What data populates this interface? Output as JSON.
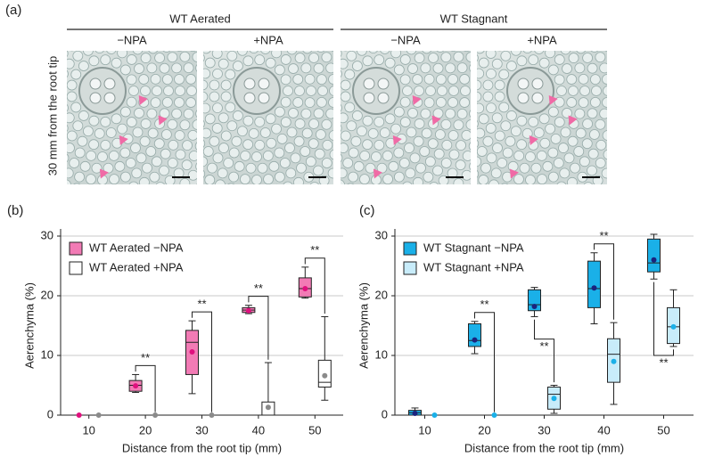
{
  "panel_a": {
    "label": "(a)",
    "side_label": "30 mm from the root tip",
    "groups": [
      {
        "title": "WT Aerated",
        "treatments": [
          "−NPA",
          "+NPA"
        ]
      },
      {
        "title": "WT Stagnant",
        "treatments": [
          "−NPA",
          "+NPA"
        ]
      }
    ]
  },
  "chart_data": [
    {
      "type": "box",
      "panel_label": "(b)",
      "x_label": "Distance from the root tip (mm)",
      "y_label": "Aerenchyma (%)",
      "categories": [
        "10",
        "20",
        "30",
        "40",
        "50"
      ],
      "ylim": [
        0,
        30
      ],
      "yticks": [
        0,
        10,
        20,
        30
      ],
      "grid": true,
      "legend": "upper left",
      "series": [
        {
          "name": "WT Aerated −NPA",
          "color": "#f27bb5",
          "mean_color": "#e0107e",
          "min": [
            0,
            3.8,
            3.6,
            17,
            19.6
          ],
          "q1": [
            0,
            4,
            6.8,
            17.2,
            19.8
          ],
          "median": [
            0,
            5,
            12.2,
            17.6,
            21.2
          ],
          "q3": [
            0,
            5.8,
            14.2,
            18,
            23
          ],
          "max": [
            0,
            6.8,
            15.8,
            18.4,
            24.8
          ],
          "mean": [
            0,
            4.9,
            10.6,
            17.5,
            21.2
          ]
        },
        {
          "name": "WT Aerated +NPA",
          "color": "#ffffff",
          "mean_color": "#8a8a8a",
          "min": [
            0,
            0,
            0,
            0,
            2.5
          ],
          "q1": [
            0,
            0,
            0,
            0,
            4.7
          ],
          "median": [
            0,
            0,
            0,
            0,
            5.5
          ],
          "q3": [
            0,
            0,
            0,
            2.2,
            9.2
          ],
          "max": [
            0,
            0,
            0,
            8.8,
            16.5
          ],
          "mean": [
            0,
            0,
            0,
            1.3,
            6.6
          ]
        }
      ],
      "annotations": [
        {
          "category": "20",
          "text": "**",
          "placement": "above"
        },
        {
          "category": "30",
          "text": "**",
          "placement": "above"
        },
        {
          "category": "40",
          "text": "**",
          "placement": "above"
        },
        {
          "category": "50",
          "text": "**",
          "placement": "above"
        }
      ]
    },
    {
      "type": "box",
      "panel_label": "(c)",
      "x_label": "Distance from the root tip (mm)",
      "y_label": "Aerenchyma (%)",
      "categories": [
        "10",
        "20",
        "30",
        "40",
        "50"
      ],
      "ylim": [
        0,
        30
      ],
      "yticks": [
        0,
        10,
        20,
        30
      ],
      "grid": true,
      "legend": "upper left",
      "series": [
        {
          "name": "WT Stagnant −NPA",
          "color": "#1ab0e8",
          "mean_color": "#1a237e",
          "min": [
            0,
            10.3,
            16.5,
            15.3,
            22.8
          ],
          "q1": [
            0,
            11.5,
            17.5,
            18,
            24
          ],
          "median": [
            0.4,
            12.5,
            18.5,
            21.2,
            25.5
          ],
          "q3": [
            0.8,
            15.3,
            21,
            25.8,
            29.5
          ],
          "max": [
            1.2,
            15.7,
            21.4,
            27.2,
            30.3
          ],
          "mean": [
            0.3,
            12.6,
            18.2,
            21.3,
            26
          ]
        },
        {
          "name": "WT Stagnant +NPA",
          "color": "#c8ecfa",
          "mean_color": "#1ab0e8",
          "min": [
            0,
            0,
            0.3,
            1.8,
            11.5
          ],
          "q1": [
            0,
            0,
            1,
            5.5,
            12
          ],
          "median": [
            0,
            0,
            3.5,
            10.2,
            14.8
          ],
          "q3": [
            0,
            0,
            4.7,
            12.8,
            18
          ],
          "max": [
            0,
            0,
            5,
            15.5,
            21
          ],
          "mean": [
            0,
            0,
            2.8,
            9,
            14.8
          ]
        }
      ],
      "annotations": [
        {
          "category": "20",
          "text": "**",
          "placement": "above"
        },
        {
          "category": "30",
          "text": "**",
          "placement": "between"
        },
        {
          "category": "40",
          "text": "**",
          "placement": "above"
        },
        {
          "category": "50",
          "text": "**",
          "placement": "below"
        }
      ]
    }
  ]
}
